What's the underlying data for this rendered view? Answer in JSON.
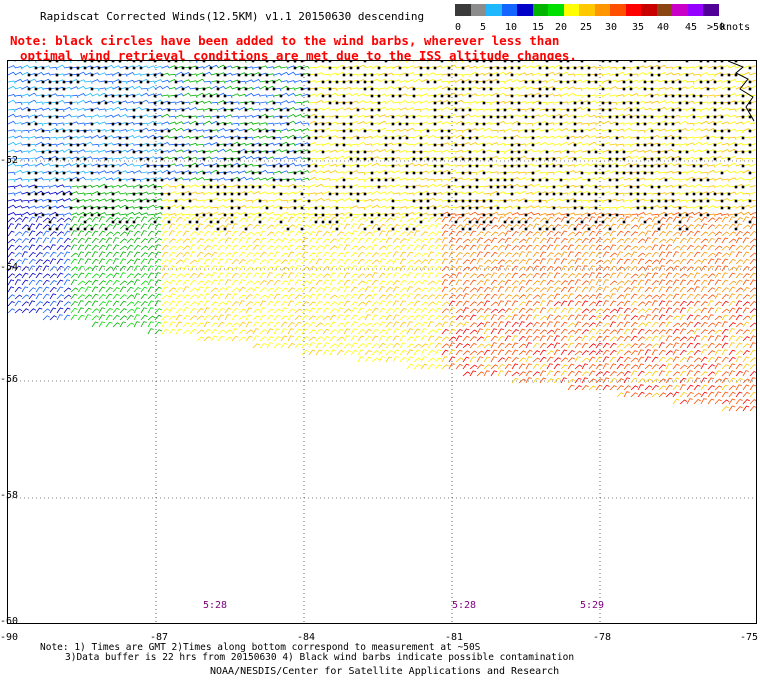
{
  "header": {
    "title": "Rapidscat Corrected Winds(12.5KM) v1.1 20150630 descending",
    "note_line1": "Note: black circles have been added to the wind barbs, wherever less than",
    "note_line2": "optimal wind retrieval conditions are met due to the ISS altitude changes."
  },
  "legend": {
    "unit": "knots",
    "labels": [
      "0",
      "5",
      "10",
      "15",
      "20",
      "25",
      "30",
      "35",
      "40",
      "45",
      ">50"
    ],
    "colors": [
      "#3a3a3a",
      "#8c8c8c",
      "#1fb8ff",
      "#1464ff",
      "#0000c8",
      "#00b400",
      "#00e000",
      "#ffff00",
      "#ffc800",
      "#ff9600",
      "#ff5000",
      "#ff0000",
      "#c80000",
      "#8b4513",
      "#c800c8",
      "#9600ff",
      "#500096"
    ]
  },
  "map": {
    "lat_labels": [
      "-52",
      "-54",
      "-56",
      "-58",
      "-60"
    ],
    "lon_labels": [
      "-90",
      "-87",
      "-84",
      "-81",
      "-78",
      "-75"
    ],
    "time_labels": [
      "5:28",
      "5:28",
      "5:29"
    ]
  },
  "footer": {
    "line1": "Note: 1) Times are GMT 2)Times along bottom correspond to measurement at ~50S",
    "line2": "3)Data buffer is 22 hrs from 20150630 4) Black wind barbs indicate possible contamination",
    "credit": "NOAA/NESDIS/Center for Satellite Applications and Research"
  }
}
